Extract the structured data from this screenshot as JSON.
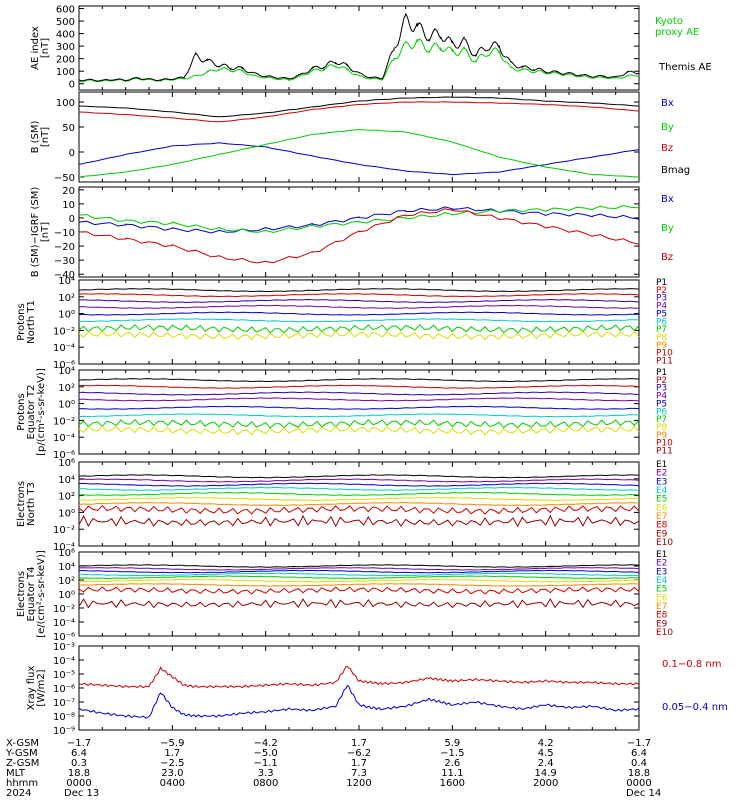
{
  "colors": {
    "black": "#000000",
    "green": "#00cc00",
    "red": "#cc0000",
    "blue": "#0000cc",
    "purple": "#7700aa",
    "cyan": "#00cccc",
    "orange": "#ff8800",
    "yellow": "#dddd00",
    "darkred": "#990000",
    "navy": "#3300aa"
  },
  "chart_data": [
    {
      "type": "line",
      "ylabel": "AE Index [nT]",
      "ylim": [
        -50,
        620
      ],
      "ticks": [
        "600",
        "500",
        "400",
        "300",
        "200",
        "100",
        "0"
      ],
      "tick_values": [
        600,
        500,
        400,
        300,
        200,
        100,
        0
      ],
      "series": [
        {
          "name": "Kyoto proxy AE",
          "color": "#00cc00",
          "x": [
            0,
            0.5,
            1,
            1.5,
            2,
            2.5,
            3,
            3.5,
            4,
            4.5,
            5,
            5.5,
            6,
            6.5,
            7,
            7.5,
            8,
            8.5,
            9,
            9.5,
            10,
            10.5,
            11,
            11.5,
            12,
            12.5,
            13,
            13.5,
            14,
            14.5,
            15,
            15.5,
            16,
            16.5,
            17,
            17.5,
            18,
            18.5,
            19,
            19.5,
            20,
            20.5,
            21,
            21.5,
            22,
            22.5,
            23,
            23.5,
            24
          ],
          "y": [
            20,
            25,
            20,
            30,
            25,
            40,
            30,
            25,
            35,
            40,
            60,
            90,
            120,
            110,
            100,
            60,
            50,
            40,
            30,
            60,
            100,
            120,
            150,
            110,
            60,
            40,
            35,
            200,
            300,
            330,
            280,
            300,
            250,
            260,
            180,
            250,
            260,
            120,
            110,
            100,
            90,
            80,
            70,
            60,
            50,
            50,
            40,
            60,
            70
          ]
        },
        {
          "name": "Themis AE",
          "color": "#000000",
          "x": [
            0,
            0.5,
            1,
            1.5,
            2,
            2.5,
            3,
            3.5,
            4,
            4.5,
            5,
            5.5,
            6,
            6.5,
            7,
            7.5,
            8,
            8.5,
            9,
            9.5,
            10,
            10.5,
            11,
            11.5,
            12,
            12.5,
            13,
            13.5,
            14,
            14.5,
            15,
            15.5,
            16,
            16.5,
            17,
            17.5,
            18,
            18.5,
            19,
            19.5,
            20,
            20.5,
            21,
            21.5,
            22,
            22.5,
            23,
            23.5,
            24
          ],
          "y": [
            30,
            30,
            25,
            35,
            30,
            45,
            35,
            30,
            40,
            50,
            220,
            180,
            150,
            130,
            120,
            80,
            60,
            50,
            40,
            70,
            120,
            140,
            180,
            140,
            80,
            50,
            45,
            280,
            500,
            450,
            380,
            400,
            310,
            330,
            230,
            300,
            300,
            160,
            130,
            120,
            100,
            90,
            80,
            70,
            60,
            60,
            50,
            90,
            90
          ]
        }
      ]
    },
    {
      "type": "line",
      "ylabel": "B (SM) [nT]",
      "ylim": [
        -60,
        120
      ],
      "ticks": [
        "100",
        "50",
        "0",
        "−50"
      ],
      "tick_values": [
        100,
        50,
        0,
        -50
      ],
      "series": [
        {
          "name": "Bx",
          "color": "#0000cc",
          "x": [
            0,
            2,
            4,
            6,
            8,
            10,
            12,
            14,
            16,
            18,
            20,
            22,
            24
          ],
          "y": [
            -25,
            -5,
            12,
            18,
            10,
            -8,
            -25,
            -38,
            -45,
            -40,
            -25,
            -10,
            5
          ]
        },
        {
          "name": "By",
          "color": "#00cc00",
          "x": [
            0,
            2,
            4,
            6,
            8,
            10,
            12,
            14,
            16,
            18,
            20,
            22,
            24
          ],
          "y": [
            -50,
            -40,
            -25,
            -5,
            15,
            35,
            45,
            40,
            20,
            -10,
            -30,
            -45,
            -50
          ]
        },
        {
          "name": "Bz",
          "color": "#cc0000",
          "x": [
            0,
            2,
            4,
            6,
            8,
            10,
            12,
            14,
            16,
            18,
            20,
            22,
            24
          ],
          "y": [
            80,
            75,
            68,
            60,
            70,
            85,
            95,
            100,
            100,
            98,
            95,
            90,
            82
          ]
        },
        {
          "name": "Bmag",
          "color": "#000000",
          "x": [
            0,
            2,
            4,
            6,
            8,
            10,
            12,
            14,
            16,
            18,
            20,
            22,
            24
          ],
          "y": [
            92,
            88,
            80,
            70,
            78,
            90,
            102,
            108,
            110,
            108,
            102,
            98,
            92
          ]
        }
      ]
    },
    {
      "type": "line",
      "ylabel": "B (SM)−IGRF (SM) [nT]",
      "ylim": [
        -42,
        22
      ],
      "ticks": [
        "20",
        "10",
        "0",
        "−10",
        "−20",
        "−30",
        "−40"
      ],
      "tick_values": [
        20,
        10,
        0,
        -10,
        -20,
        -30,
        -40
      ],
      "series": [
        {
          "name": "Bx",
          "color": "#0000cc",
          "x": [
            0,
            2,
            4,
            6,
            8,
            10,
            12,
            14,
            16,
            18,
            20,
            22,
            24
          ],
          "y": [
            -3,
            -5,
            -8,
            -10,
            -8,
            -5,
            0,
            5,
            7,
            5,
            3,
            2,
            0
          ]
        },
        {
          "name": "By",
          "color": "#00cc00",
          "x": [
            0,
            2,
            4,
            6,
            8,
            10,
            12,
            14,
            16,
            18,
            20,
            22,
            24
          ],
          "y": [
            2,
            -2,
            -4,
            -8,
            -10,
            -6,
            -3,
            0,
            3,
            5,
            6,
            7,
            8
          ]
        },
        {
          "name": "Bz",
          "color": "#cc0000",
          "x": [
            0,
            2,
            4,
            6,
            8,
            10,
            12,
            14,
            16,
            18,
            20,
            22,
            24
          ],
          "y": [
            -10,
            -15,
            -20,
            -28,
            -32,
            -25,
            -10,
            2,
            6,
            0,
            -6,
            -12,
            -18
          ]
        }
      ]
    },
    {
      "type": "line",
      "ylabel": "Protons North T1",
      "ylog": true,
      "ticks": [
        "10⁴",
        "10²",
        "10⁰",
        "10⁻²",
        "10⁻⁴",
        "10⁻⁶"
      ],
      "tick_exp": [
        4,
        2,
        0,
        -2,
        -4,
        -6
      ],
      "ylim_exp": [
        -6,
        4
      ],
      "legend": [
        "P1",
        "P2",
        "P3",
        "P4",
        "P5",
        "P6",
        "P7",
        "P8",
        "P9",
        "P10",
        "P11"
      ],
      "legend_colors": [
        "#000000",
        "#cc0000",
        "#3300aa",
        "#7700aa",
        "#0000cc",
        "#00cccc",
        "#00cc00",
        "#dddd00",
        "#ff8800",
        "#cc0000",
        "#990000"
      ],
      "levels_exp": [
        2.8,
        2.2,
        1.5,
        0.8,
        0.0,
        -0.8,
        -1.8,
        -2.6
      ]
    },
    {
      "type": "line",
      "ylabel": "Protons Equator T2 [p/(cm²-s-sr-keV)]",
      "ylog": true,
      "ticks": [
        "10⁴",
        "10²",
        "10⁰",
        "10⁻²",
        "10⁻⁴",
        "10⁻⁶"
      ],
      "tick_exp": [
        4,
        2,
        0,
        -2,
        -4,
        -6
      ],
      "ylim_exp": [
        -6,
        4
      ],
      "legend": [
        "P1",
        "P2",
        "P3",
        "P4",
        "P5",
        "P6",
        "P7",
        "P8",
        "P9",
        "P10",
        "P11"
      ],
      "legend_colors": [
        "#000000",
        "#cc0000",
        "#3300aa",
        "#7700aa",
        "#0000cc",
        "#00cccc",
        "#00cc00",
        "#dddd00",
        "#ff8800",
        "#cc0000",
        "#990000"
      ],
      "levels_exp": [
        2.8,
        2.0,
        1.2,
        0.5,
        -0.5,
        -1.4,
        -2.4,
        -3.2
      ]
    },
    {
      "type": "line",
      "ylabel": "Electrons North T3",
      "ylog": true,
      "ticks": [
        "10⁶",
        "10⁴",
        "10²",
        "10⁰",
        "10⁻²",
        "10⁻⁴"
      ],
      "tick_exp": [
        6,
        4,
        2,
        0,
        -2,
        -4
      ],
      "ylim_exp": [
        -4,
        6
      ],
      "legend": [
        "E1",
        "E2",
        "E3",
        "E4",
        "E5",
        "E6",
        "E7",
        "E8",
        "E9",
        "E10"
      ],
      "legend_colors": [
        "#000000",
        "#7700aa",
        "#0000cc",
        "#00cccc",
        "#00cc00",
        "#dddd00",
        "#ff8800",
        "#cc0000",
        "#990000",
        "#990000"
      ],
      "levels_exp": [
        4.3,
        3.8,
        3.3,
        2.8,
        2.2,
        1.6,
        1.0,
        0.3,
        -1.5
      ]
    },
    {
      "type": "line",
      "ylabel": "Electrons Equator T4 [e/(cm²-s-sr-keV)]",
      "ylog": true,
      "ticks": [
        "10⁶",
        "10⁴",
        "10²",
        "10⁰",
        "10⁻²",
        "10⁻⁴",
        "10⁻⁶"
      ],
      "tick_exp": [
        6,
        4,
        2,
        0,
        -2,
        -4,
        -6
      ],
      "ylim_exp": [
        -6,
        6
      ],
      "legend": [
        "E1",
        "E2",
        "E3",
        "E4",
        "E5",
        "E6",
        "E7",
        "E8",
        "E9",
        "E10"
      ],
      "legend_colors": [
        "#000000",
        "#7700aa",
        "#0000cc",
        "#00cccc",
        "#00cc00",
        "#dddd00",
        "#ff8800",
        "#cc0000",
        "#990000",
        "#990000"
      ],
      "levels_exp": [
        4.0,
        3.6,
        3.2,
        2.8,
        2.4,
        1.9,
        1.3,
        0.5,
        -1.8
      ]
    },
    {
      "type": "line",
      "ylabel": "Xray flux [W/m²]",
      "ylog": true,
      "ticks": [
        "10⁻³",
        "10⁻⁴",
        "10⁻⁵",
        "10⁻⁶",
        "10⁻⁷",
        "10⁻⁸",
        "10⁻⁹"
      ],
      "tick_exp": [
        -3,
        -4,
        -5,
        -6,
        -7,
        -8,
        -9
      ],
      "ylim_exp": [
        -9,
        -3
      ],
      "series": [
        {
          "name": "0.1−0.8 nm",
          "color": "#cc0000",
          "x": [
            0,
            1,
            2,
            3,
            3.5,
            4,
            4.5,
            5,
            6,
            7,
            8,
            9,
            10,
            11,
            11.5,
            12,
            12.5,
            13,
            14,
            15,
            15.5,
            16,
            17,
            18,
            19,
            20,
            21,
            22,
            23,
            24
          ],
          "y_exp": [
            -5.7,
            -5.8,
            -5.9,
            -5.9,
            -4.6,
            -5.2,
            -5.8,
            -5.9,
            -5.9,
            -5.9,
            -5.8,
            -5.7,
            -5.8,
            -5.6,
            -4.4,
            -5.5,
            -5.6,
            -5.7,
            -5.6,
            -5.3,
            -5.4,
            -5.5,
            -5.4,
            -5.5,
            -5.6,
            -5.5,
            -5.6,
            -5.6,
            -5.7,
            -5.7
          ]
        },
        {
          "name": "0.05−0.4 nm",
          "color": "#0000cc",
          "x": [
            0,
            1,
            2,
            3,
            3.5,
            4,
            4.5,
            5,
            6,
            7,
            8,
            9,
            10,
            11,
            11.5,
            12,
            12.5,
            13,
            14,
            15,
            15.5,
            16,
            17,
            18,
            19,
            20,
            21,
            22,
            23,
            24
          ],
          "y_exp": [
            -7.5,
            -7.8,
            -8.0,
            -8.1,
            -6.3,
            -7.4,
            -7.9,
            -8.0,
            -8.0,
            -7.8,
            -7.7,
            -7.5,
            -7.6,
            -7.3,
            -5.8,
            -7.2,
            -7.4,
            -7.5,
            -7.3,
            -6.8,
            -7.0,
            -7.2,
            -7.0,
            -7.3,
            -7.5,
            -7.2,
            -7.4,
            -7.3,
            -7.6,
            -7.5
          ]
        }
      ]
    }
  ],
  "labels": {
    "ae_ylabel_1": "AE index",
    "ae_ylabel_2": "[nT]",
    "b_ylabel_1": "B (SM)",
    "b_ylabel_2": "[nT]",
    "db_ylabel_1": "B (SM)−IGRF (SM)",
    "db_ylabel_2": "[nT]",
    "p1_ylabel_1": "Protons",
    "p1_ylabel_2": "North T1",
    "p2_ylabel_1": "Protons",
    "p2_ylabel_2": "Equator T2",
    "p2_ylabel_3": "[p/(cm²-s-sr-keV)]",
    "e1_ylabel_1": "Electrons",
    "e1_ylabel_2": "North T3",
    "e2_ylabel_1": "Electrons",
    "e2_ylabel_2": "Equator T4",
    "e2_ylabel_3": "[e/(cm²-s-sr-keV)]",
    "x_ylabel_1": "Xray flux",
    "x_ylabel_2": "[W/m2]",
    "legend_kyoto_1": "Kyoto",
    "legend_kyoto_2": "proxy AE",
    "legend_themis": "Themis AE",
    "legend_bx": "Bx",
    "legend_by": "By",
    "legend_bz": "Bz",
    "legend_bmag": "Bmag",
    "legend_x1": "0.1−0.8 nm",
    "legend_x2": "0.05−0.4 nm"
  },
  "x_axis": {
    "rows": [
      {
        "label": "X-GSM",
        "values": [
          "−1.7",
          "−5.9",
          "−4.2",
          "1.7",
          "5.9",
          "4.2",
          "−1.7"
        ]
      },
      {
        "label": "Y-GSM",
        "values": [
          "6.4",
          "1.7",
          "−5.0",
          "−6.2",
          "−1.5",
          "4.5",
          "6.4"
        ]
      },
      {
        "label": "Z-GSM",
        "values": [
          "0.3",
          "−2.5",
          "−1.1",
          "1.7",
          "2.6",
          "2.4",
          "0.4"
        ]
      },
      {
        "label": "MLT",
        "values": [
          "18.8",
          "23.0",
          "3.3",
          "7.3",
          "11.1",
          "14.9",
          "18.8"
        ]
      },
      {
        "label": "hhmm",
        "values": [
          "0000",
          "0400",
          "0800",
          "1200",
          "1600",
          "2000",
          "0000"
        ]
      }
    ],
    "date_row_label": "2024",
    "date_start": "Dec 13",
    "date_end": "Dec 14"
  }
}
